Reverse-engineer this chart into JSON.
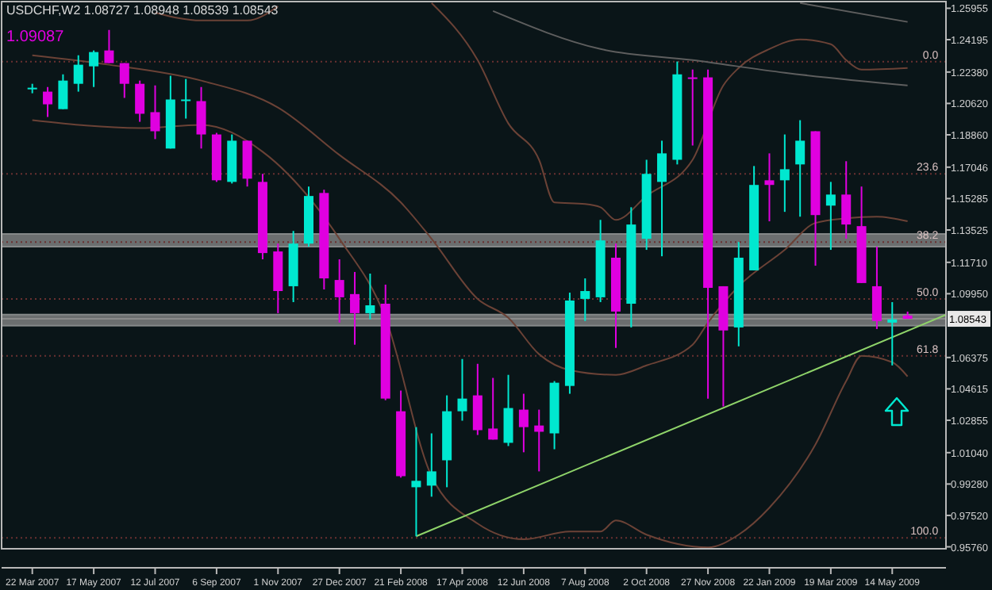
{
  "chart_data": {
    "type": "candlestick",
    "title": "USDCHF,W2  1.08727 1.08948 1.08539 1.08543",
    "annotations": [
      "1.09087",
      {
        "text": "0.0",
        "x": "2009-06-25",
        "y": 1.2296
      },
      {
        "text": "23.6",
        "x": "2009-06-25",
        "y": 1.1667
      },
      {
        "text": "38.2",
        "x": "2009-06-25",
        "y": 1.1285
      },
      {
        "text": "50.0",
        "x": "2009-06-25",
        "y": 1.0966
      },
      {
        "text": "61.8",
        "x": "2009-06-25",
        "y": 1.0647
      },
      {
        "text": "100.0",
        "x": "2009-06-25",
        "y": 0.9626
      }
    ],
    "x": [
      "2007-03-22",
      "2007-04-05",
      "2007-04-19",
      "2007-05-03",
      "2007-05-17",
      "2007-05-31",
      "2007-06-14",
      "2007-06-28",
      "2007-07-12",
      "2007-07-26",
      "2007-08-09",
      "2007-08-23",
      "2007-09-06",
      "2007-09-20",
      "2007-10-04",
      "2007-10-18",
      "2007-11-01",
      "2007-11-15",
      "2007-11-29",
      "2007-12-13",
      "2007-12-27",
      "2008-01-10",
      "2008-01-24",
      "2008-02-07",
      "2008-02-21",
      "2008-03-06",
      "2008-03-20",
      "2008-04-03",
      "2008-04-17",
      "2008-05-01",
      "2008-05-15",
      "2008-05-29",
      "2008-06-12",
      "2008-06-26",
      "2008-07-10",
      "2008-07-24",
      "2008-08-07",
      "2008-08-21",
      "2008-09-04",
      "2008-09-18",
      "2008-10-02",
      "2008-10-16",
      "2008-10-30",
      "2008-11-13",
      "2008-11-27",
      "2008-12-11",
      "2008-12-25",
      "2009-01-08",
      "2009-01-22",
      "2009-02-05",
      "2009-02-19",
      "2009-03-05",
      "2009-03-19",
      "2009-04-02",
      "2009-04-16",
      "2009-04-30",
      "2009-05-14",
      "2009-05-28"
    ],
    "ohlc": [
      [
        1.2141,
        1.2172,
        1.2119,
        1.215
      ],
      [
        1.2128,
        1.2154,
        1.1986,
        1.2057
      ],
      [
        1.203,
        1.2225,
        1.203,
        1.219
      ],
      [
        1.2172,
        1.2332,
        1.2128,
        1.2279
      ],
      [
        1.227,
        1.2359,
        1.2154,
        1.235
      ],
      [
        1.2359,
        1.2474,
        1.2288,
        1.2288
      ],
      [
        1.2288,
        1.2288,
        1.2093,
        1.2172
      ],
      [
        1.2172,
        1.219,
        1.1959,
        1.2004
      ],
      [
        1.2013,
        1.2163,
        1.1862,
        1.1906
      ],
      [
        1.1809,
        1.2217,
        1.1809,
        1.2084
      ],
      [
        1.2079,
        1.2199,
        1.1977,
        1.2084
      ],
      [
        1.2075,
        1.2154,
        1.1809,
        1.1888
      ],
      [
        1.1888,
        1.1897,
        1.1622,
        1.1631
      ],
      [
        1.1622,
        1.1888,
        1.1613,
        1.1853
      ],
      [
        1.1853,
        1.1853,
        1.1596,
        1.164
      ],
      [
        1.1622,
        1.1667,
        1.1188,
        1.1223
      ],
      [
        1.1232,
        1.1276,
        1.0886,
        1.101
      ],
      [
        1.1037,
        1.1347,
        1.0948,
        1.1276
      ],
      [
        1.1276,
        1.1596,
        1.1259,
        1.1543
      ],
      [
        1.156,
        1.1578,
        1.1019,
        1.1081
      ],
      [
        1.1072,
        1.1188,
        1.0833,
        1.0975
      ],
      [
        1.0993,
        1.1117,
        1.0709,
        1.0886
      ],
      [
        1.0886,
        1.1108,
        1.0851,
        1.093
      ],
      [
        1.0939,
        1.1046,
        1.0398,
        1.0407
      ],
      [
        1.0336,
        1.0452,
        0.9964,
        0.9972
      ],
      [
        0.991,
        1.0247,
        0.9635,
        0.9946
      ],
      [
        0.9919,
        1.0212,
        0.9857,
        0.9999
      ],
      [
        1.0061,
        1.0425,
        0.991,
        1.0336
      ],
      [
        1.0336,
        1.0629,
        1.0283,
        1.0407
      ],
      [
        1.0425,
        1.0602,
        1.0203,
        1.023
      ],
      [
        1.0239,
        1.0523,
        1.0177,
        1.0177
      ],
      [
        1.0159,
        1.054,
        1.0141,
        1.0354
      ],
      [
        1.0345,
        1.0434,
        1.0106,
        1.0247
      ],
      [
        1.0256,
        1.0345,
        0.9999,
        1.0221
      ],
      [
        1.0212,
        1.0505,
        1.0123,
        1.0496
      ],
      [
        1.0478,
        1.1001,
        1.0434,
        1.0957
      ],
      [
        1.0966,
        1.1081,
        1.0842,
        1.101
      ],
      [
        1.0975,
        1.1409,
        1.0948,
        1.1294
      ],
      [
        1.1197,
        1.1276,
        1.0691,
        1.0895
      ],
      [
        1.0939,
        1.148,
        1.0806,
        1.1383
      ],
      [
        1.1303,
        1.1746,
        1.1241,
        1.1667
      ],
      [
        1.1622,
        1.1853,
        1.1205,
        1.1782
      ],
      [
        1.1746,
        1.2297,
        1.172,
        1.2225
      ],
      [
        1.2208,
        1.2252,
        1.1826,
        1.2203
      ],
      [
        1.2208,
        1.2252,
        1.0407,
        1.1028
      ],
      [
        1.1037,
        1.1037,
        1.0363,
        1.0789
      ],
      [
        1.0806,
        1.1285,
        1.07,
        1.1197
      ],
      [
        1.1126,
        1.1711,
        1.1126,
        1.1605
      ],
      [
        1.1631,
        1.1782,
        1.1401,
        1.1605
      ],
      [
        1.1631,
        1.1888,
        1.1454,
        1.1693
      ],
      [
        1.172,
        1.1968,
        1.1427,
        1.1853
      ],
      [
        1.1906,
        1.1906,
        1.1152,
        1.1436
      ],
      [
        1.1489,
        1.1622,
        1.1241,
        1.1551
      ],
      [
        1.1551,
        1.1738,
        1.1303,
        1.1383
      ],
      [
        1.1374,
        1.1596,
        1.1055,
        1.1055
      ],
      [
        1.1037,
        1.1259,
        1.0797,
        1.0842
      ],
      [
        1.0833,
        1.0948,
        1.0593,
        1.0851
      ],
      [
        1.08727,
        1.08948,
        1.08539,
        1.08543
      ]
    ],
    "colors": [
      "#00e8d0",
      "#e000e0",
      "#00e8d0",
      "#00e8d0",
      "#00e8d0",
      "#e000e0",
      "#e000e0",
      "#e000e0",
      "#e000e0",
      "#00e8d0",
      "#00e8d0",
      "#e000e0",
      "#e000e0",
      "#00e8d0",
      "#e000e0",
      "#e000e0",
      "#e000e0",
      "#00e8d0",
      "#00e8d0",
      "#e000e0",
      "#e000e0",
      "#e000e0",
      "#00e8d0",
      "#e000e0",
      "#e000e0",
      "#00e8d0",
      "#00e8d0",
      "#00e8d0",
      "#00e8d0",
      "#e000e0",
      "#e000e0",
      "#00e8d0",
      "#e000e0",
      "#e000e0",
      "#00e8d0",
      "#00e8d0",
      "#00e8d0",
      "#00e8d0",
      "#e000e0",
      "#00e8d0",
      "#00e8d0",
      "#00e8d0",
      "#00e8d0",
      "#e000e0",
      "#e000e0",
      "#e000e0",
      "#00e8d0",
      "#00e8d0",
      "#e000e0",
      "#00e8d0",
      "#00e8d0",
      "#e000e0",
      "#00e8d0",
      "#e000e0",
      "#e000e0",
      "#e000e0",
      "#00e8d0",
      "#e000e0"
    ],
    "xlim": [
      "2007-02-22",
      "2009-07-02"
    ],
    "xticks": [
      {
        "value": "2007-03-22",
        "label": "22 Mar 2007"
      },
      {
        "value": "2007-05-17",
        "label": "17 May 2007"
      },
      {
        "value": "2007-07-12",
        "label": "12 Jul 2007"
      },
      {
        "value": "2007-09-06",
        "label": "6 Sep 2007"
      },
      {
        "value": "2007-11-01",
        "label": "1 Nov 2007"
      },
      {
        "value": "2007-12-27",
        "label": "27 Dec 2007"
      },
      {
        "value": "2008-02-21",
        "label": "21 Feb 2008"
      },
      {
        "value": "2008-04-17",
        "label": "17 Apr 2008"
      },
      {
        "value": "2008-06-12",
        "label": "12 Jun 2008"
      },
      {
        "value": "2008-08-07",
        "label": "7 Aug 2008"
      },
      {
        "value": "2008-10-02",
        "label": "2 Oct 2008"
      },
      {
        "value": "2008-11-27",
        "label": "27 Nov 2008"
      },
      {
        "value": "2009-01-22",
        "label": "22 Jan 2009"
      },
      {
        "value": "2009-03-19",
        "label": "19 Mar 2009"
      },
      {
        "value": "2009-05-14",
        "label": "14 May 2009"
      }
    ],
    "ylim": [
      0.9565,
      1.2633
    ],
    "yticks": [
      {
        "value": 1.25955,
        "label": "1.25955"
      },
      {
        "value": 1.24195,
        "label": "1.24195"
      },
      {
        "value": 1.2238,
        "label": "1.22380"
      },
      {
        "value": 1.2062,
        "label": "1.20620"
      },
      {
        "value": 1.1886,
        "label": "1.18860"
      },
      {
        "value": 1.17046,
        "label": "1.17046"
      },
      {
        "value": 1.15285,
        "label": "1.15285"
      },
      {
        "value": 1.13525,
        "label": "1.13525"
      },
      {
        "value": 1.1171,
        "label": "1.11710"
      },
      {
        "value": 1.0995,
        "label": "1.09950"
      },
      {
        "value": 1.06375,
        "label": "1.06375"
      },
      {
        "value": 1.04615,
        "label": "1.04615"
      },
      {
        "value": 1.02855,
        "label": "1.02855"
      },
      {
        "value": 1.0104,
        "label": "1.01040"
      },
      {
        "value": 0.9928,
        "label": "0.99280"
      },
      {
        "value": 0.9752,
        "label": "0.97520"
      },
      {
        "value": 0.9576,
        "label": "0.95760"
      }
    ],
    "grid": false,
    "series": [
      {
        "type": "line",
        "color": "#6b4236",
        "x": [
          "2007-03-22",
          "2007-06-28",
          "2007-08-23",
          "2007-10-18",
          "2007-12-27",
          "2008-02-07",
          "2008-03-20",
          "2008-05-01",
          "2008-06-12",
          "2008-07-24",
          "2008-08-21",
          "2008-09-04",
          "2008-10-02",
          "2008-11-27",
          "2008-12-25",
          "2009-01-22",
          "2009-03-05",
          "2009-04-02",
          "2009-04-16",
          "2009-05-14",
          "2009-05-28"
        ],
        "values": [
          1.1968,
          1.1924,
          1.1942,
          1.1791,
          1.1303,
          1.086,
          0.9972,
          0.9706,
          0.9618,
          0.9662,
          0.9662,
          0.9724,
          0.9644,
          0.9573,
          0.9644,
          0.9795,
          1.015,
          1.0505,
          1.0647,
          1.0611,
          1.0531
        ]
      },
      {
        "type": "line",
        "color": "#6b4236",
        "x": [
          "2007-03-22",
          "2007-05-31",
          "2007-08-23",
          "2007-11-01",
          "2007-12-27",
          "2008-02-21",
          "2008-03-20",
          "2008-05-01",
          "2008-05-29",
          "2008-06-26",
          "2008-07-24",
          "2008-09-04",
          "2008-10-02",
          "2008-11-13",
          "2008-11-27",
          "2008-12-25",
          "2009-02-05",
          "2009-03-05",
          "2009-04-02",
          "2009-04-30",
          "2009-05-28"
        ],
        "values": [
          1.2332,
          1.2279,
          1.219,
          1.2039,
          1.1773,
          1.1507,
          1.1303,
          1.0966,
          1.086,
          1.0656,
          1.0567,
          1.054,
          1.0593,
          1.0709,
          1.0833,
          1.1037,
          1.1241,
          1.1392,
          1.1418,
          1.1427,
          1.1401
        ]
      },
      {
        "type": "line",
        "color": "#6b4236",
        "x": [
          "2008-03-20",
          "2008-05-01",
          "2008-05-29",
          "2008-06-26",
          "2008-07-10",
          "2008-08-07",
          "2008-08-21",
          "2008-09-04",
          "2008-10-02",
          "2008-11-13",
          "2008-12-11",
          "2008-12-25",
          "2009-01-22",
          "2009-02-19",
          "2009-03-19",
          "2009-04-02",
          "2009-04-16",
          "2009-05-28"
        ],
        "values": [
          1.2625,
          1.2305,
          1.195,
          1.1746,
          1.1507,
          1.1498,
          1.148,
          1.1409,
          1.1543,
          1.1746,
          1.2163,
          1.2261,
          1.2367,
          1.2421,
          1.2394,
          1.2305,
          1.2252,
          1.2261
        ]
      },
      {
        "type": "line",
        "color": "#6b4236",
        "x": [
          "2007-07-12",
          "2007-08-23",
          "2007-10-04",
          "2007-11-01"
        ],
        "values": [
          1.2571,
          1.2527,
          1.2527,
          1.2607
        ]
      },
      {
        "type": "line",
        "color": "#5e5e5e",
        "x": [
          "2008-05-15",
          "2008-08-21",
          "2008-11-13",
          "2009-02-05",
          "2009-05-28"
        ],
        "values": [
          1.258,
          1.2367,
          1.2305,
          1.2234,
          1.2163
        ]
      },
      {
        "type": "line",
        "color": "#5e5e5e",
        "x": [
          "2009-02-19",
          "2009-05-28"
        ],
        "values": [
          1.2625,
          1.2519
        ]
      },
      {
        "type": "line",
        "color": "#8fd46a",
        "x": [
          "2008-03-06",
          "2009-07-02"
        ],
        "values": [
          0.9635,
          1.0877
        ]
      }
    ],
    "ref_lines": [
      {
        "axis": "y",
        "value": 1.2296,
        "color": "#6a3030",
        "line_style": "dotted"
      },
      {
        "axis": "y",
        "value": 1.1667,
        "color": "#6a3030",
        "line_style": "dotted"
      },
      {
        "axis": "y",
        "value": 1.1285,
        "color": "#6a3030",
        "line_style": "dotted"
      },
      {
        "axis": "y",
        "value": 1.0966,
        "color": "#6a3030",
        "line_style": "dotted"
      },
      {
        "axis": "y",
        "value": 1.0647,
        "color": "#6a3030",
        "line_style": "dotted"
      },
      {
        "axis": "y",
        "value": 0.9626,
        "color": "#6a3030",
        "line_style": "dotted"
      },
      {
        "axis": "y",
        "value": 1.08543,
        "label": "1.08543",
        "color": "#8a8a8a",
        "line_style": "solid"
      }
    ],
    "bands": [
      {
        "axis": "y",
        "from": 1.0816,
        "to": 1.0878,
        "color": "#8c8c8c"
      },
      {
        "axis": "y",
        "from": 1.1259,
        "to": 1.133,
        "color": "#8c8c8c"
      }
    ]
  }
}
